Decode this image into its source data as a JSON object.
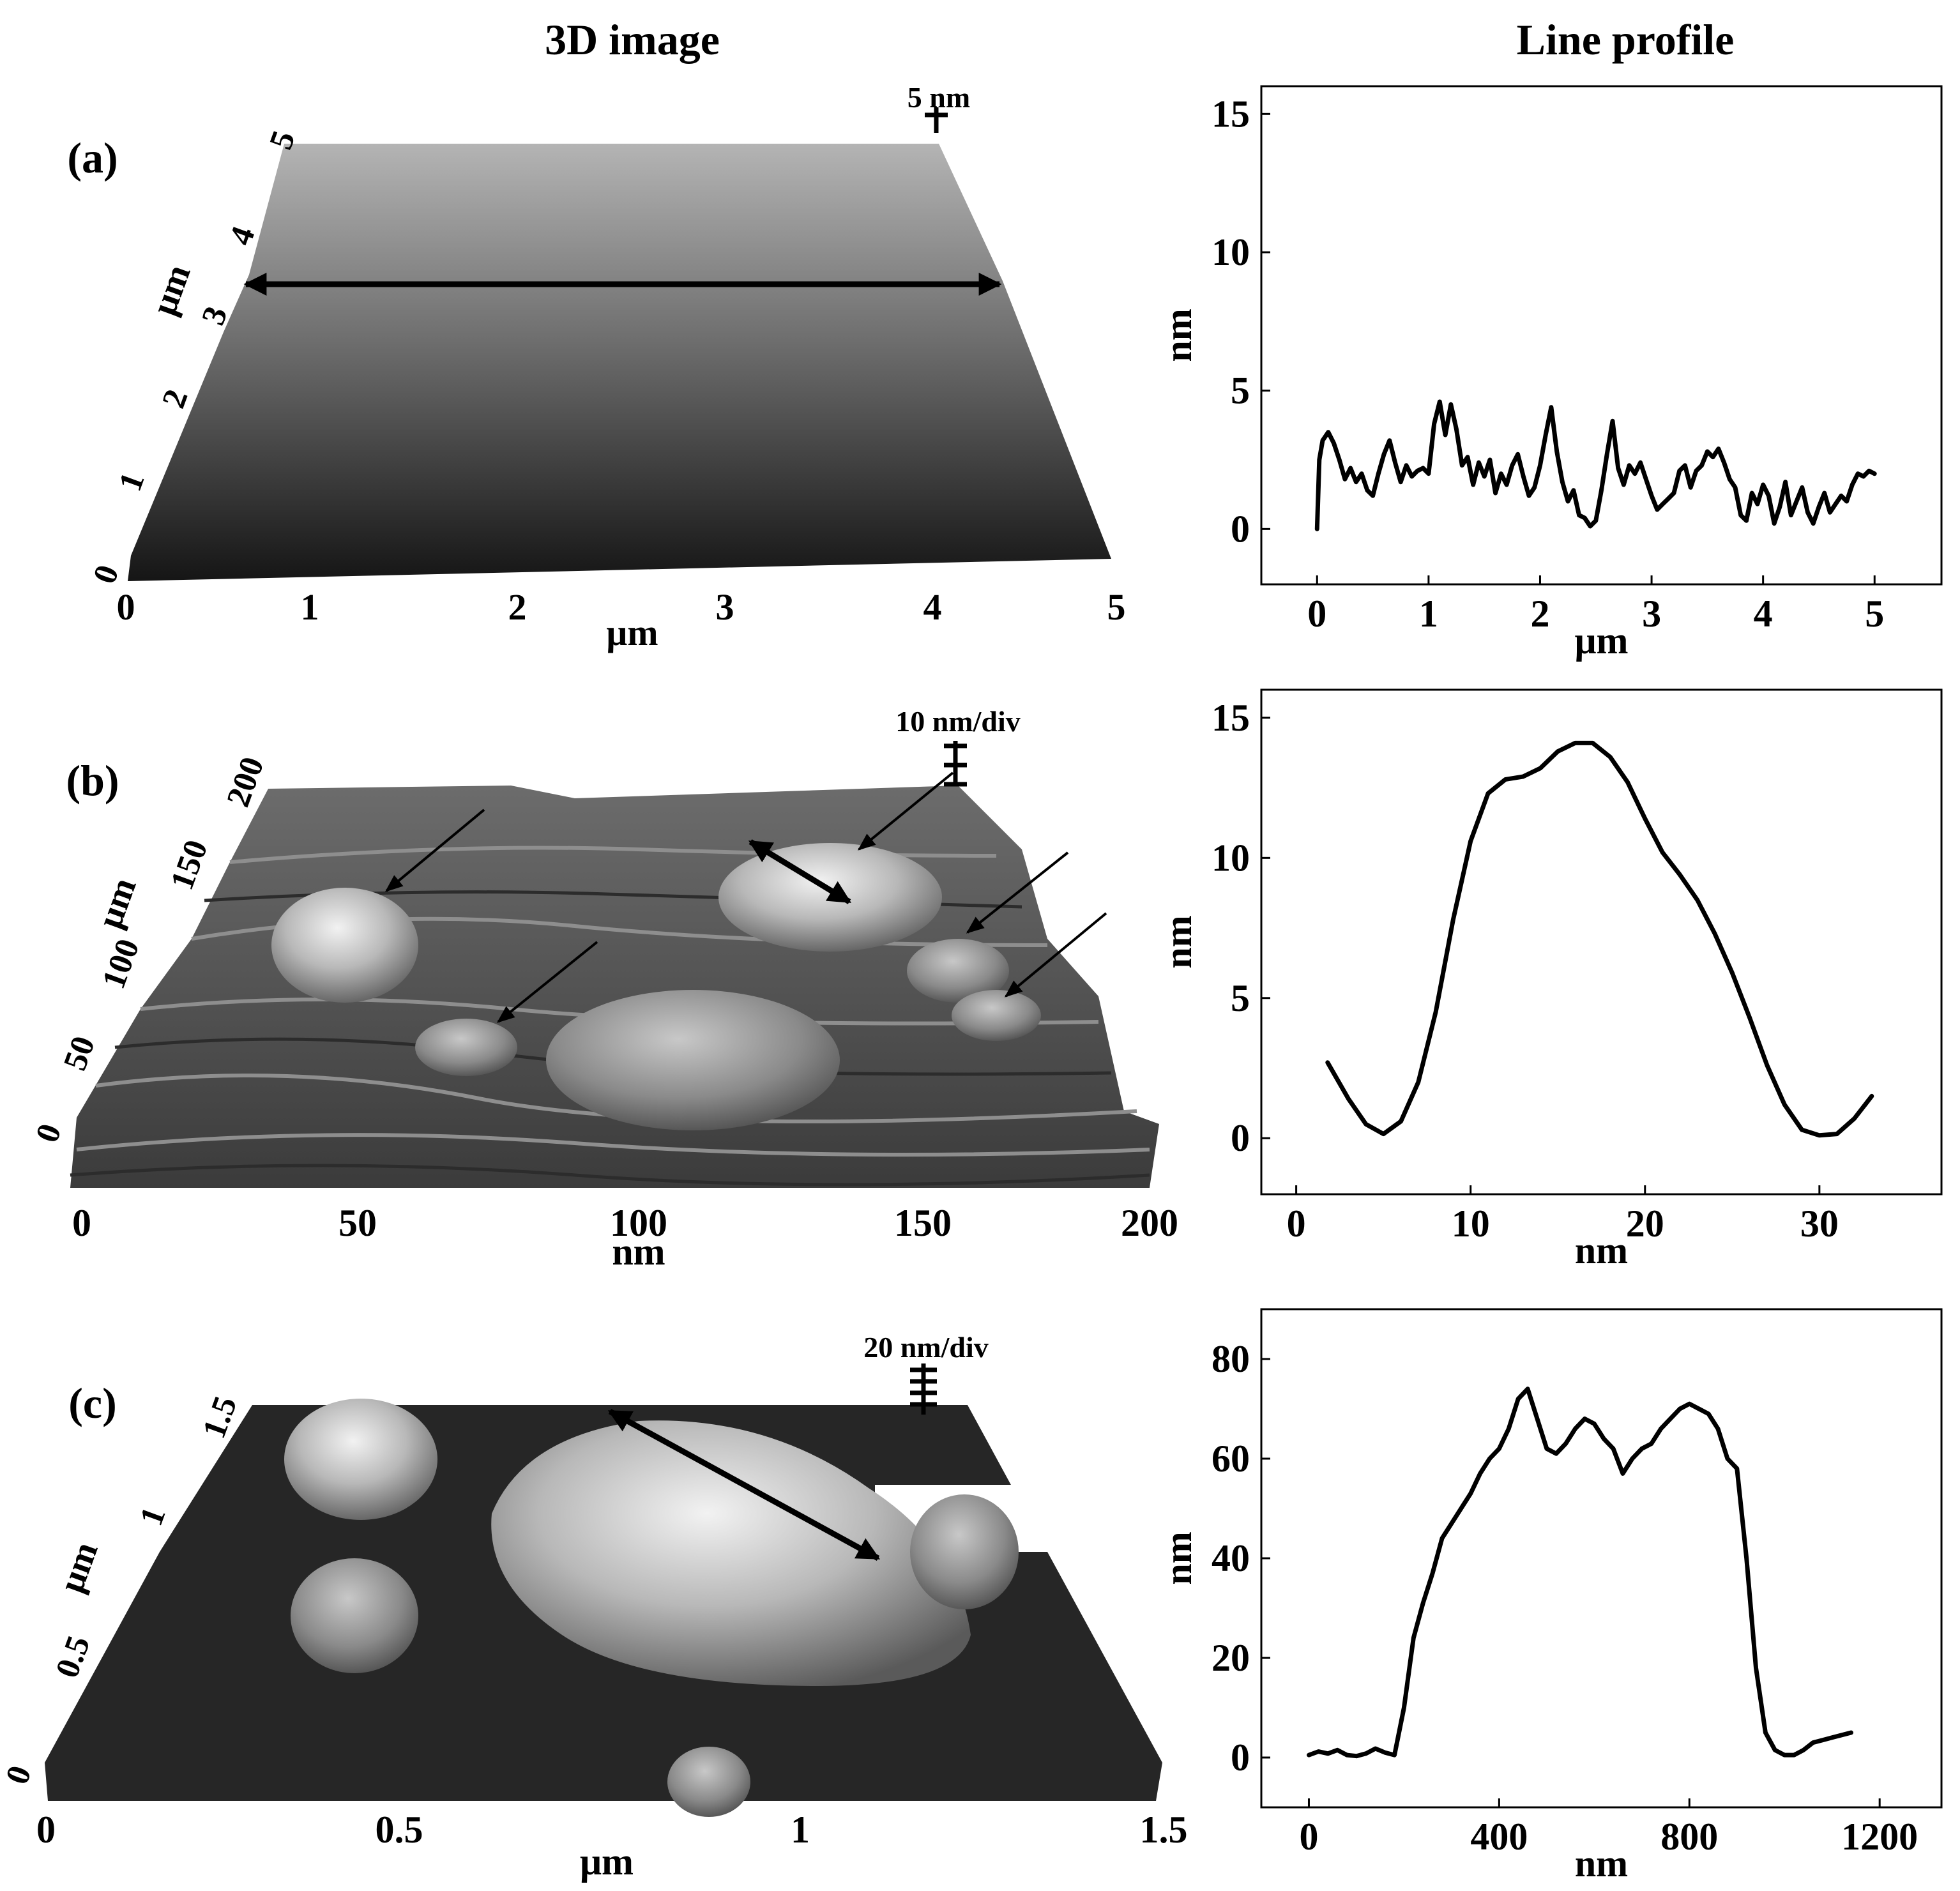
{
  "headers": {
    "left": "3D image",
    "right": "Line profile"
  },
  "panels": [
    {
      "label": "(a)",
      "scale_bar": "5 nm",
      "afm": {
        "x_ticks": [
          "0",
          "1",
          "2",
          "3",
          "4",
          "5"
        ],
        "x_label": "μm",
        "y_ticks": [
          "0",
          "1",
          "2",
          "3",
          "4",
          "5"
        ],
        "y_label": "μm"
      }
    },
    {
      "label": "(b)",
      "scale_bar": "10 nm/div",
      "afm": {
        "x_ticks": [
          "0",
          "50",
          "100",
          "150",
          "200"
        ],
        "x_label": "nm",
        "y_ticks": [
          "0",
          "50",
          "100",
          "150",
          "200"
        ],
        "y_label": "μm"
      }
    },
    {
      "label": "(c)",
      "scale_bar": "20 nm/div",
      "afm": {
        "x_ticks": [
          "0",
          "0.5",
          "1",
          "1.5"
        ],
        "x_label": "μm",
        "y_ticks": [
          "0",
          "0.5",
          "1",
          "1.5"
        ],
        "y_label": "μm"
      }
    }
  ],
  "chart_data": [
    {
      "type": "line",
      "xlabel": "μm",
      "ylabel": "nm",
      "xlim": [
        -0.5,
        5.6
      ],
      "ylim": [
        -2,
        16
      ],
      "xticks": [
        0,
        1,
        2,
        3,
        4,
        5
      ],
      "yticks": [
        0,
        5,
        10,
        15
      ],
      "series": [
        {
          "x": [
            0,
            0.02,
            0.05,
            0.1,
            0.15,
            0.2,
            0.25,
            0.3,
            0.35,
            0.4,
            0.45,
            0.5,
            0.55,
            0.6,
            0.65,
            0.7,
            0.75,
            0.8,
            0.85,
            0.9,
            0.95,
            1.0,
            1.05,
            1.1,
            1.15,
            1.2,
            1.25,
            1.3,
            1.35,
            1.4,
            1.45,
            1.5,
            1.55,
            1.6,
            1.65,
            1.7,
            1.75,
            1.8,
            1.85,
            1.9,
            1.95,
            2.0,
            2.05,
            2.1,
            2.15,
            2.2,
            2.25,
            2.3,
            2.35,
            2.4,
            2.45,
            2.5,
            2.55,
            2.6,
            2.65,
            2.7,
            2.75,
            2.8,
            2.85,
            2.9,
            2.95,
            3.0,
            3.05,
            3.1,
            3.15,
            3.2,
            3.25,
            3.3,
            3.35,
            3.4,
            3.45,
            3.5,
            3.55,
            3.6,
            3.65,
            3.7,
            3.75,
            3.8,
            3.85,
            3.9,
            3.95,
            4.0,
            4.05,
            4.1,
            4.15,
            4.2,
            4.25,
            4.3,
            4.35,
            4.4,
            4.45,
            4.5,
            4.55,
            4.6,
            4.65,
            4.7,
            4.75,
            4.8,
            4.85,
            4.9,
            4.95,
            5.0
          ],
          "y": [
            0,
            2.5,
            3.2,
            3.5,
            3.1,
            2.5,
            1.8,
            2.2,
            1.7,
            2.0,
            1.4,
            1.2,
            2.0,
            2.7,
            3.2,
            2.4,
            1.7,
            2.3,
            1.9,
            2.1,
            2.2,
            2.0,
            3.8,
            4.6,
            3.4,
            4.5,
            3.6,
            2.3,
            2.6,
            1.6,
            2.4,
            1.9,
            2.5,
            1.3,
            2.0,
            1.6,
            2.3,
            2.7,
            1.9,
            1.2,
            1.5,
            2.3,
            3.4,
            4.4,
            2.8,
            1.7,
            1.0,
            1.4,
            0.5,
            0.4,
            0.1,
            0.3,
            1.4,
            2.7,
            3.9,
            2.2,
            1.6,
            2.3,
            2.0,
            2.4,
            1.8,
            1.2,
            0.7,
            0.9,
            1.1,
            1.3,
            2.1,
            2.3,
            1.5,
            2.1,
            2.3,
            2.8,
            2.6,
            2.9,
            2.4,
            1.8,
            1.5,
            0.5,
            0.3,
            1.3,
            0.9,
            1.6,
            1.2,
            0.2,
            0.8,
            1.7,
            0.5,
            1.0,
            1.5,
            0.6,
            0.2,
            0.8,
            1.3,
            0.6,
            0.9,
            1.2,
            1.0,
            1.6,
            2.0,
            1.9,
            2.1,
            2.0
          ]
        }
      ]
    },
    {
      "type": "line",
      "xlabel": "nm",
      "ylabel": "nm",
      "xlim": [
        -2,
        37
      ],
      "ylim": [
        -2,
        16
      ],
      "xticks": [
        0,
        10,
        20,
        30
      ],
      "yticks": [
        0,
        5,
        10,
        15
      ],
      "series": [
        {
          "x": [
            1.8,
            3,
            4,
            5,
            6,
            7,
            8,
            9,
            10,
            11,
            12,
            13,
            14,
            15,
            16,
            17,
            18,
            19,
            20,
            21,
            22,
            23,
            24,
            25,
            26,
            27,
            28,
            29,
            30,
            31,
            32,
            33
          ],
          "y": [
            2.7,
            1.4,
            0.5,
            0.15,
            0.6,
            2.0,
            4.5,
            7.8,
            10.6,
            12.3,
            12.8,
            12.9,
            13.2,
            13.8,
            14.1,
            14.1,
            13.6,
            12.7,
            11.4,
            10.2,
            9.4,
            8.5,
            7.3,
            5.9,
            4.3,
            2.6,
            1.2,
            0.3,
            0.1,
            0.15,
            0.7,
            1.5
          ]
        }
      ]
    },
    {
      "type": "line",
      "xlabel": "nm",
      "ylabel": "nm",
      "xlim": [
        -100,
        1330
      ],
      "ylim": [
        -10,
        90
      ],
      "xticks": [
        0,
        400,
        800,
        1200
      ],
      "yticks": [
        0,
        20,
        40,
        60,
        80
      ],
      "series": [
        {
          "x": [
            0,
            20,
            40,
            60,
            80,
            100,
            120,
            140,
            160,
            180,
            200,
            220,
            240,
            260,
            280,
            300,
            320,
            340,
            360,
            380,
            400,
            420,
            440,
            460,
            480,
            500,
            520,
            540,
            560,
            580,
            600,
            620,
            640,
            660,
            680,
            700,
            720,
            740,
            760,
            780,
            800,
            820,
            840,
            860,
            880,
            900,
            920,
            940,
            960,
            980,
            1000,
            1020,
            1040,
            1060,
            1080,
            1100,
            1120,
            1140
          ],
          "y": [
            0.5,
            1.2,
            0.8,
            1.5,
            0.5,
            0.3,
            0.8,
            1.8,
            1.0,
            0.5,
            10,
            24,
            31,
            37,
            44,
            47,
            50,
            53,
            57,
            60,
            62,
            66,
            72,
            74,
            68,
            62,
            61,
            63,
            66,
            68,
            67,
            64,
            62,
            57,
            60,
            62,
            63,
            66,
            68,
            70,
            71,
            70,
            69,
            66,
            60,
            58,
            40,
            18,
            5,
            1.5,
            0.5,
            0.5,
            1.5,
            3,
            3.5,
            4,
            4.5,
            5
          ]
        }
      ]
    }
  ]
}
